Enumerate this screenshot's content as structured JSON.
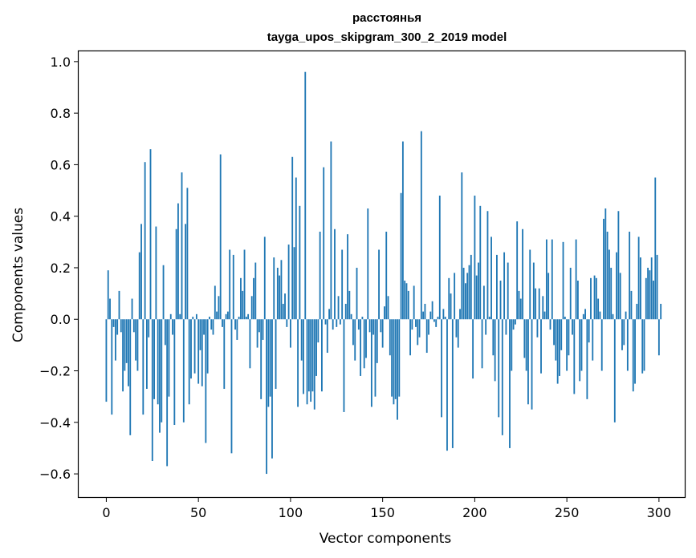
{
  "chart_data": {
    "type": "bar",
    "title_lines": [
      "расстоянья",
      "tayga_upos_skipgram_300_2_2019 model"
    ],
    "xlabel": "Vector components",
    "ylabel": "Components values",
    "xlim": [
      -15,
      314
    ],
    "ylim": [
      -0.69,
      1.04
    ],
    "xticks": [
      0,
      50,
      100,
      150,
      200,
      250,
      300
    ],
    "xtick_labels": [
      "0",
      "50",
      "100",
      "150",
      "200",
      "250",
      "300"
    ],
    "yticks": [
      -0.6,
      -0.4,
      -0.2,
      0.0,
      0.2,
      0.4,
      0.6,
      0.8,
      1.0
    ],
    "ytick_labels": [
      "−0.6",
      "−0.4",
      "−0.2",
      "0.0",
      "0.2",
      "0.4",
      "0.6",
      "0.8",
      "1.0"
    ],
    "bar_color": "#1f77b4",
    "grid": false,
    "values": [
      -0.32,
      0.19,
      0.08,
      -0.37,
      -0.03,
      -0.16,
      -0.06,
      0.11,
      -0.05,
      -0.28,
      -0.2,
      -0.17,
      -0.26,
      -0.45,
      0.08,
      -0.05,
      -0.16,
      -0.2,
      0.26,
      0.37,
      -0.37,
      0.61,
      -0.27,
      -0.07,
      0.66,
      -0.55,
      -0.31,
      0.36,
      -0.33,
      -0.44,
      -0.4,
      0.21,
      -0.1,
      -0.57,
      -0.3,
      0.02,
      -0.06,
      -0.41,
      0.35,
      0.45,
      0.02,
      0.57,
      -0.4,
      0.37,
      0.51,
      -0.33,
      -0.23,
      0.01,
      -0.21,
      0.02,
      -0.25,
      -0.12,
      -0.26,
      -0.06,
      -0.48,
      -0.21,
      0.01,
      -0.04,
      -0.06,
      0.13,
      0.03,
      0.09,
      0.64,
      -0.03,
      -0.27,
      0.02,
      0.03,
      0.27,
      -0.52,
      0.25,
      -0.04,
      -0.08,
      0.01,
      0.16,
      0.11,
      0.27,
      0.01,
      0.02,
      -0.19,
      0.09,
      0.16,
      0.22,
      -0.11,
      -0.05,
      -0.31,
      -0.08,
      0.32,
      -0.6,
      -0.34,
      -0.3,
      -0.54,
      0.24,
      -0.27,
      0.2,
      0.17,
      0.23,
      0.06,
      0.1,
      -0.03,
      0.29,
      -0.11,
      0.63,
      0.28,
      0.55,
      -0.34,
      0.44,
      -0.16,
      -0.29,
      0.96,
      -0.33,
      -0.28,
      -0.32,
      -0.28,
      -0.35,
      -0.22,
      -0.09,
      0.34,
      -0.28,
      0.59,
      -0.02,
      -0.13,
      0.04,
      0.69,
      -0.04,
      0.35,
      -0.03,
      0.09,
      -0.02,
      0.27,
      -0.36,
      0.06,
      0.33,
      0.11,
      0.02,
      -0.1,
      -0.16,
      0.2,
      -0.04,
      -0.22,
      0.01,
      -0.19,
      -0.15,
      0.43,
      -0.05,
      -0.34,
      -0.06,
      -0.3,
      -0.17,
      0.27,
      -0.05,
      -0.11,
      0.05,
      0.34,
      0.09,
      -0.14,
      -0.3,
      -0.33,
      -0.31,
      -0.39,
      -0.3,
      0.49,
      0.69,
      0.15,
      0.14,
      0.11,
      -0.14,
      -0.04,
      0.13,
      -0.03,
      -0.1,
      -0.07,
      0.73,
      0.03,
      0.06,
      -0.13,
      -0.06,
      0.03,
      0.07,
      -0.01,
      -0.03,
      0.01,
      0.48,
      -0.38,
      0.04,
      0.01,
      -0.51,
      0.16,
      0.1,
      -0.5,
      0.18,
      -0.07,
      -0.11,
      0.04,
      0.57,
      0.2,
      0.14,
      0.18,
      0.21,
      0.25,
      -0.23,
      0.48,
      0.17,
      0.22,
      0.44,
      -0.19,
      0.13,
      -0.06,
      0.42,
      0.01,
      0.32,
      -0.14,
      -0.24,
      0.25,
      -0.38,
      0.15,
      -0.45,
      0.26,
      -0.06,
      0.22,
      -0.5,
      -0.2,
      -0.04,
      -0.02,
      0.38,
      0.11,
      0.08,
      0.35,
      -0.15,
      -0.2,
      -0.33,
      0.27,
      -0.35,
      0.22,
      0.12,
      -0.07,
      0.12,
      -0.21,
      0.09,
      0.03,
      0.31,
      0.18,
      -0.04,
      0.31,
      -0.1,
      -0.16,
      -0.25,
      -0.22,
      -0.12,
      0.3,
      0.01,
      -0.2,
      -0.14,
      0.2,
      -0.06,
      -0.29,
      0.31,
      0.15,
      -0.24,
      -0.2,
      0.02,
      0.04,
      -0.31,
      -0.09,
      0.16,
      -0.16,
      0.17,
      0.16,
      0.08,
      0.03,
      -0.2,
      0.39,
      0.43,
      0.34,
      0.27,
      0.2,
      0.02,
      -0.4,
      0.26,
      0.42,
      0.18,
      -0.12,
      -0.1,
      0.03,
      -0.2,
      0.34,
      0.11,
      -0.28,
      -0.25,
      0.06,
      0.32,
      0.24,
      -0.21,
      -0.2,
      0.16,
      0.2,
      0.19,
      0.24,
      0.15,
      0.55,
      0.25,
      -0.14,
      0.06
    ]
  }
}
